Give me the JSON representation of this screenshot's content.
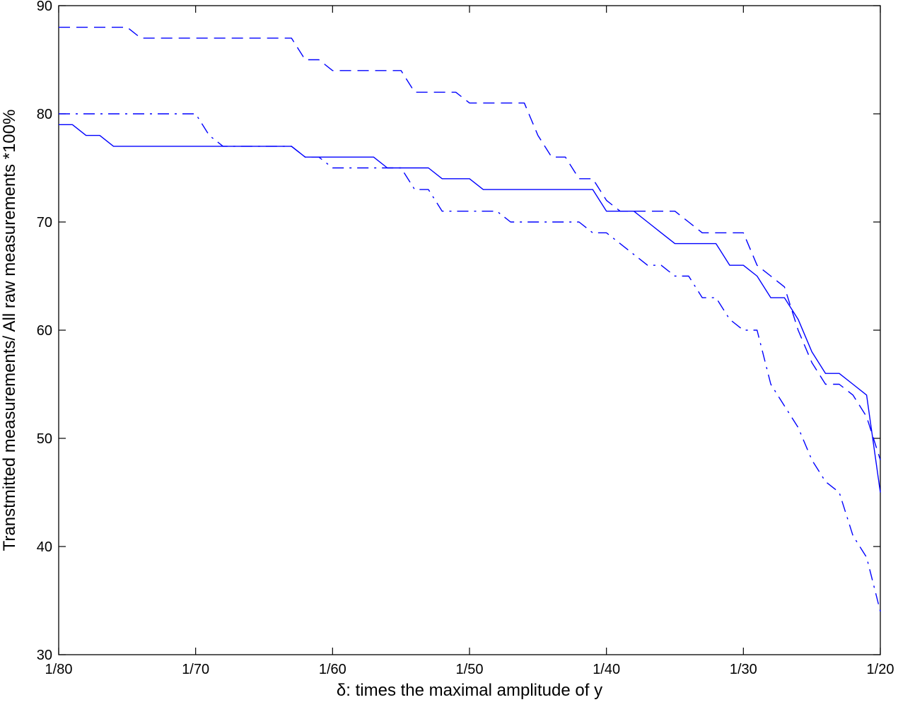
{
  "chart_data": {
    "type": "line",
    "xlabel": "δ: times the maximal amplitude of y",
    "ylabel": "Transtmitted measurements/ All raw measurements *100%",
    "x_scale": "reciprocal",
    "xlim": [
      0.0125,
      0.05
    ],
    "ylim": [
      30,
      90
    ],
    "grid": false,
    "x_ticks": [
      {
        "value": 0.0125,
        "label": "1/80"
      },
      {
        "value": 0.0142857,
        "label": "1/70"
      },
      {
        "value": 0.0166667,
        "label": "1/60"
      },
      {
        "value": 0.02,
        "label": "1/50"
      },
      {
        "value": 0.025,
        "label": "1/40"
      },
      {
        "value": 0.0333333,
        "label": "1/30"
      },
      {
        "value": 0.05,
        "label": "1/20"
      }
    ],
    "y_ticks": [
      30,
      40,
      50,
      60,
      70,
      80,
      90
    ],
    "series": [
      {
        "style": "solid",
        "color": "#0000ff",
        "x": [
          80,
          79,
          78,
          77,
          76,
          75,
          74,
          73,
          72,
          71,
          70,
          69,
          68,
          67,
          66,
          65,
          64,
          63,
          62,
          61,
          60,
          59,
          58,
          57,
          56,
          55,
          54,
          53,
          52,
          51,
          50,
          49,
          48,
          47,
          46,
          45,
          44,
          43,
          42,
          41,
          40,
          39,
          38,
          37,
          36,
          35,
          34,
          33,
          32,
          31,
          30,
          29,
          28,
          27,
          26,
          25,
          24,
          23,
          22,
          21,
          20
        ],
        "y": [
          79,
          79,
          78,
          78,
          77,
          77,
          77,
          77,
          77,
          77,
          77,
          77,
          77,
          77,
          77,
          77,
          77,
          77,
          76,
          76,
          76,
          76,
          76,
          76,
          75,
          75,
          75,
          75,
          74,
          74,
          74,
          73,
          73,
          73,
          73,
          73,
          73,
          73,
          73,
          73,
          71,
          71,
          71,
          70,
          69,
          68,
          68,
          68,
          68,
          66,
          66,
          65,
          63,
          63,
          61,
          58,
          56,
          56,
          55,
          54,
          45
        ]
      },
      {
        "style": "dashed",
        "color": "#0000ff",
        "x": [
          80,
          79,
          78,
          77,
          76,
          75,
          74,
          73,
          72,
          71,
          70,
          69,
          68,
          67,
          66,
          65,
          64,
          63,
          62,
          61,
          60,
          59,
          58,
          57,
          56,
          55,
          54,
          53,
          52,
          51,
          50,
          49,
          48,
          47,
          46,
          45,
          44,
          43,
          42,
          41,
          40,
          39,
          38,
          37,
          36,
          35,
          34,
          33,
          32,
          31,
          30,
          29,
          28,
          27,
          26,
          25,
          24,
          23,
          22,
          21,
          20
        ],
        "y": [
          88,
          88,
          88,
          88,
          88,
          88,
          87,
          87,
          87,
          87,
          87,
          87,
          87,
          87,
          87,
          87,
          87,
          87,
          85,
          85,
          84,
          84,
          84,
          84,
          84,
          84,
          82,
          82,
          82,
          82,
          81,
          81,
          81,
          81,
          81,
          78,
          76,
          76,
          74,
          74,
          72,
          71,
          71,
          71,
          71,
          71,
          70,
          69,
          69,
          69,
          69,
          66,
          65,
          64,
          60,
          57,
          55,
          55,
          54,
          52,
          48
        ]
      },
      {
        "style": "dashdot",
        "color": "#0000ff",
        "x": [
          80,
          79,
          78,
          77,
          76,
          75,
          74,
          73,
          72,
          71,
          70,
          69,
          68,
          67,
          66,
          65,
          64,
          63,
          62,
          61,
          60,
          59,
          58,
          57,
          56,
          55,
          54,
          53,
          52,
          51,
          50,
          49,
          48,
          47,
          46,
          45,
          44,
          43,
          42,
          41,
          40,
          39,
          38,
          37,
          36,
          35,
          34,
          33,
          32,
          31,
          30,
          29,
          28,
          27,
          26,
          25,
          24,
          23,
          22,
          21,
          20
        ],
        "y": [
          80,
          80,
          80,
          80,
          80,
          80,
          80,
          80,
          80,
          80,
          80,
          78,
          77,
          77,
          77,
          77,
          77,
          77,
          76,
          76,
          75,
          75,
          75,
          75,
          75,
          75,
          73,
          73,
          71,
          71,
          71,
          71,
          71,
          70,
          70,
          70,
          70,
          70,
          70,
          69,
          69,
          68,
          67,
          66,
          66,
          65,
          65,
          63,
          63,
          61,
          60,
          60,
          55,
          53,
          51,
          48,
          46,
          45,
          41,
          39,
          34
        ]
      }
    ]
  }
}
